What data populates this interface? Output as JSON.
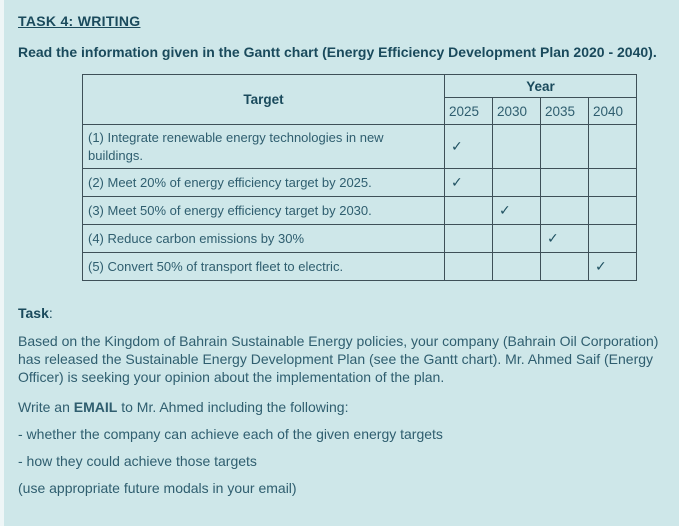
{
  "page": {
    "title": "TASK 4: WRITING",
    "intro": "Read the information given in the Gantt chart (Energy Efficiency Development Plan 2020 - 2040).",
    "background_color": "#cee7e9",
    "heading_color": "#1a4a5c",
    "text_color": "#2f5e6f",
    "table_border_color": "#3e5058"
  },
  "gantt_table": {
    "target_header": "Target",
    "year_header": "Year",
    "years": [
      "2025",
      "2030",
      "2035",
      "2040"
    ],
    "check_glyph": "✓",
    "rows": [
      {
        "target": "(1) Integrate renewable energy technologies in new buildings.",
        "check_year": "2025"
      },
      {
        "target": "(2) Meet 20% of energy efficiency target by 2025.",
        "check_year": "2025"
      },
      {
        "target": "(3) Meet 50% of energy efficiency target by 2030.",
        "check_year": "2030"
      },
      {
        "target": "(4) Reduce carbon emissions by 30%",
        "check_year": "2035"
      },
      {
        "target": "(5) Convert 50% of transport fleet to electric.",
        "check_year": "2040"
      }
    ]
  },
  "task_section": {
    "heading": "Task",
    "heading_colon": ":",
    "description": "Based on the Kingdom of Bahrain Sustainable Energy policies, your company (Bahrain Oil Corporation) has released the Sustainable Energy Development Plan (see the Gantt chart).  Mr. Ahmed Saif (Energy Officer) is seeking your opinion about the implementation of the plan.",
    "email_line_prefix": "Write an ",
    "email_word": "EMAIL",
    "email_line_suffix": " to Mr. Ahmed including the following:",
    "bullets": [
      "- whether the company can achieve each of the given energy targets",
      "- how they could achieve those targets"
    ],
    "note": "(use appropriate future modals in your email)"
  },
  "chart_data": {
    "type": "table",
    "title": "Energy Efficiency Development Plan 2020 - 2040",
    "columns": [
      "Target",
      "2025",
      "2030",
      "2035",
      "2040"
    ],
    "rows": [
      [
        "(1) Integrate renewable energy technologies in new buildings.",
        "✓",
        "",
        "",
        ""
      ],
      [
        "(2) Meet 20% of energy efficiency target by 2025.",
        "✓",
        "",
        "",
        ""
      ],
      [
        "(3) Meet 50% of energy efficiency target by 2030.",
        "",
        "✓",
        "",
        ""
      ],
      [
        "(4) Reduce carbon emissions by 30%",
        "",
        "",
        "✓",
        ""
      ],
      [
        "(5) Convert 50% of transport fleet to electric.",
        "",
        "",
        "",
        "✓"
      ]
    ]
  }
}
